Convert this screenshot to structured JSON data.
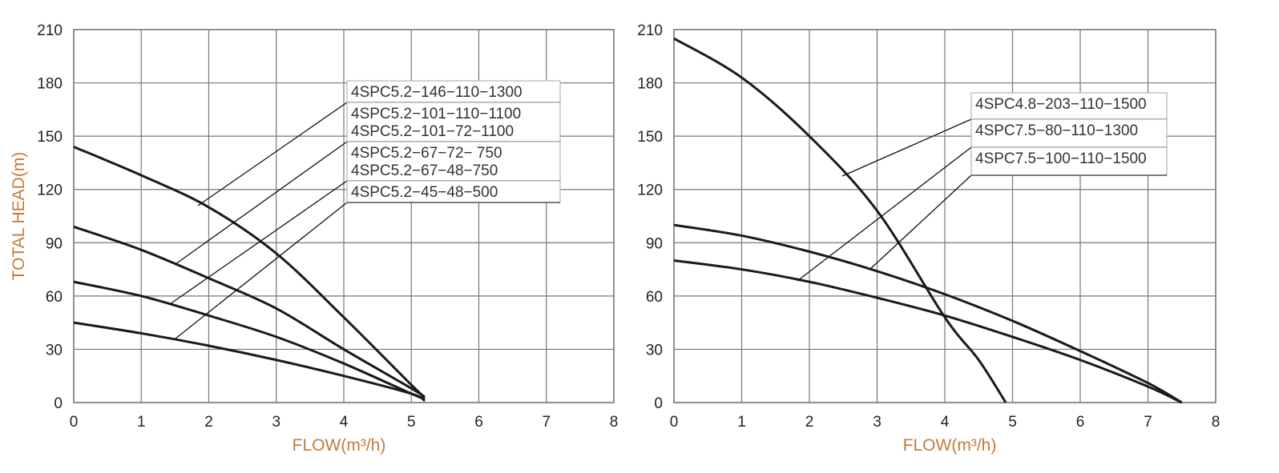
{
  "colors": {
    "axis_title": "#c47a3a",
    "curve": "#1a1a1a",
    "grid": "#777777",
    "tick_text": "#222222"
  },
  "chart_data": [
    {
      "type": "line",
      "title": "",
      "xlabel": "FLOW(m³/h)",
      "ylabel": "TOTAL HEAD(m)",
      "xlim": [
        0,
        8
      ],
      "ylim": [
        0,
        210
      ],
      "xticks": [
        0,
        1,
        2,
        3,
        4,
        5,
        6,
        7,
        8
      ],
      "yticks": [
        0,
        30,
        60,
        90,
        120,
        150,
        180,
        210
      ],
      "grid": true,
      "legend_labels": [
        "4SPC5.2−146−110−1300",
        "4SPC5.2−101−110−1100",
        "4SPC5.2−101−72−1100",
        "4SPC5.2−67−72− 750",
        "4SPC5.2−67−48−750",
        "4SPC5.2−45−48−500"
      ],
      "series": [
        {
          "x": [
            0,
            1,
            2,
            3,
            4,
            5,
            5.2
          ],
          "values": [
            144,
            128,
            110,
            84,
            48,
            10,
            3
          ]
        },
        {
          "x": [
            0,
            1,
            2,
            3,
            4,
            5,
            5.2
          ],
          "values": [
            99,
            86,
            70,
            53,
            30,
            8,
            3
          ]
        },
        {
          "x": [
            0,
            1,
            2,
            3,
            4,
            5,
            5.2
          ],
          "values": [
            68,
            60,
            49,
            37,
            22,
            5,
            2
          ]
        },
        {
          "x": [
            0,
            1,
            2,
            3,
            4,
            5,
            5.2
          ],
          "values": [
            45,
            39,
            32,
            24,
            15,
            5,
            1
          ]
        }
      ]
    },
    {
      "type": "line",
      "title": "",
      "xlabel": "FLOW(m³/h)",
      "ylabel": "",
      "xlim": [
        0,
        8
      ],
      "ylim": [
        0,
        210
      ],
      "xticks": [
        0,
        1,
        2,
        3,
        4,
        5,
        6,
        7,
        8
      ],
      "yticks": [
        0,
        30,
        60,
        90,
        120,
        150,
        180,
        210
      ],
      "grid": true,
      "legend_labels": [
        "4SPC4.8−203−110−1500",
        "4SPC7.5−80−110−1300",
        "4SPC7.5−100−110−1500"
      ],
      "series": [
        {
          "x": [
            0,
            1,
            2,
            3,
            4,
            4.5,
            4.9
          ],
          "values": [
            205,
            183,
            150,
            108,
            48,
            24,
            0
          ]
        },
        {
          "x": [
            0,
            1,
            2,
            3,
            4,
            5,
            6,
            7,
            7.5
          ],
          "values": [
            100,
            94,
            85,
            74,
            61,
            46,
            29,
            11,
            0
          ]
        },
        {
          "x": [
            0,
            1,
            2,
            3,
            4,
            5,
            6,
            7,
            7.5
          ],
          "values": [
            80,
            75,
            68,
            59,
            49,
            37,
            24,
            9,
            0
          ]
        }
      ]
    }
  ]
}
